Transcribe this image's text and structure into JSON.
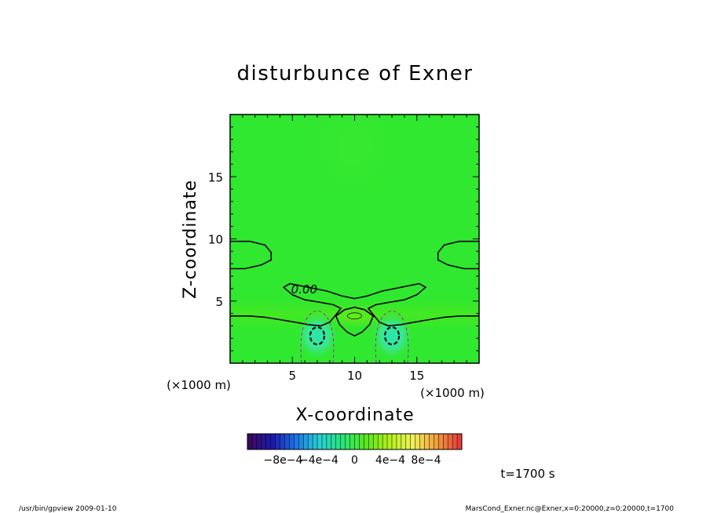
{
  "chart_data": {
    "type": "heatmap",
    "title": "disturbunce of Exner",
    "xlabel": "X-coordinate",
    "ylabel": "Z-coordinate",
    "x_unit": "(×1000 m)",
    "y_unit": "(×1000 m)",
    "xlim": [
      0,
      20
    ],
    "ylim": [
      0,
      20
    ],
    "x_ticks": [
      5,
      10,
      15
    ],
    "y_ticks": [
      5,
      10,
      15
    ],
    "x_tick_labels": [
      "5",
      "10",
      "15"
    ],
    "y_tick_labels": [
      "5",
      "10",
      "15"
    ],
    "contour_label": "0.00",
    "contour_label_pos": [
      4.9,
      5.6
    ],
    "minima": [
      [
        7.0,
        2.2
      ],
      [
        13.0,
        2.2
      ]
    ],
    "local_max": [
      10.0,
      3.8
    ],
    "colorbar": {
      "range": [
        -0.0012,
        0.0012
      ],
      "ticks": [
        -0.0008,
        -0.0004,
        0,
        0.0004,
        0.0008
      ],
      "tick_labels": [
        "−8e−4",
        "−4e−4",
        "0",
        "4e−4",
        "8e−4"
      ],
      "colors": [
        "#3a0a5e",
        "#1a1ab0",
        "#1e78e6",
        "#28d2d2",
        "#28e678",
        "#5ae61e",
        "#b4f01e",
        "#f0f05a",
        "#f0a03c",
        "#e63c3c"
      ]
    },
    "background_color": "#2fe82f",
    "time_label": "t=1700 s",
    "footer_left": "/usr/bin/gpview   2009-01-10",
    "footer_right": "MarsCond_Exner.nc@Exner,x=0:20000,z=0:20000,t=1700"
  }
}
